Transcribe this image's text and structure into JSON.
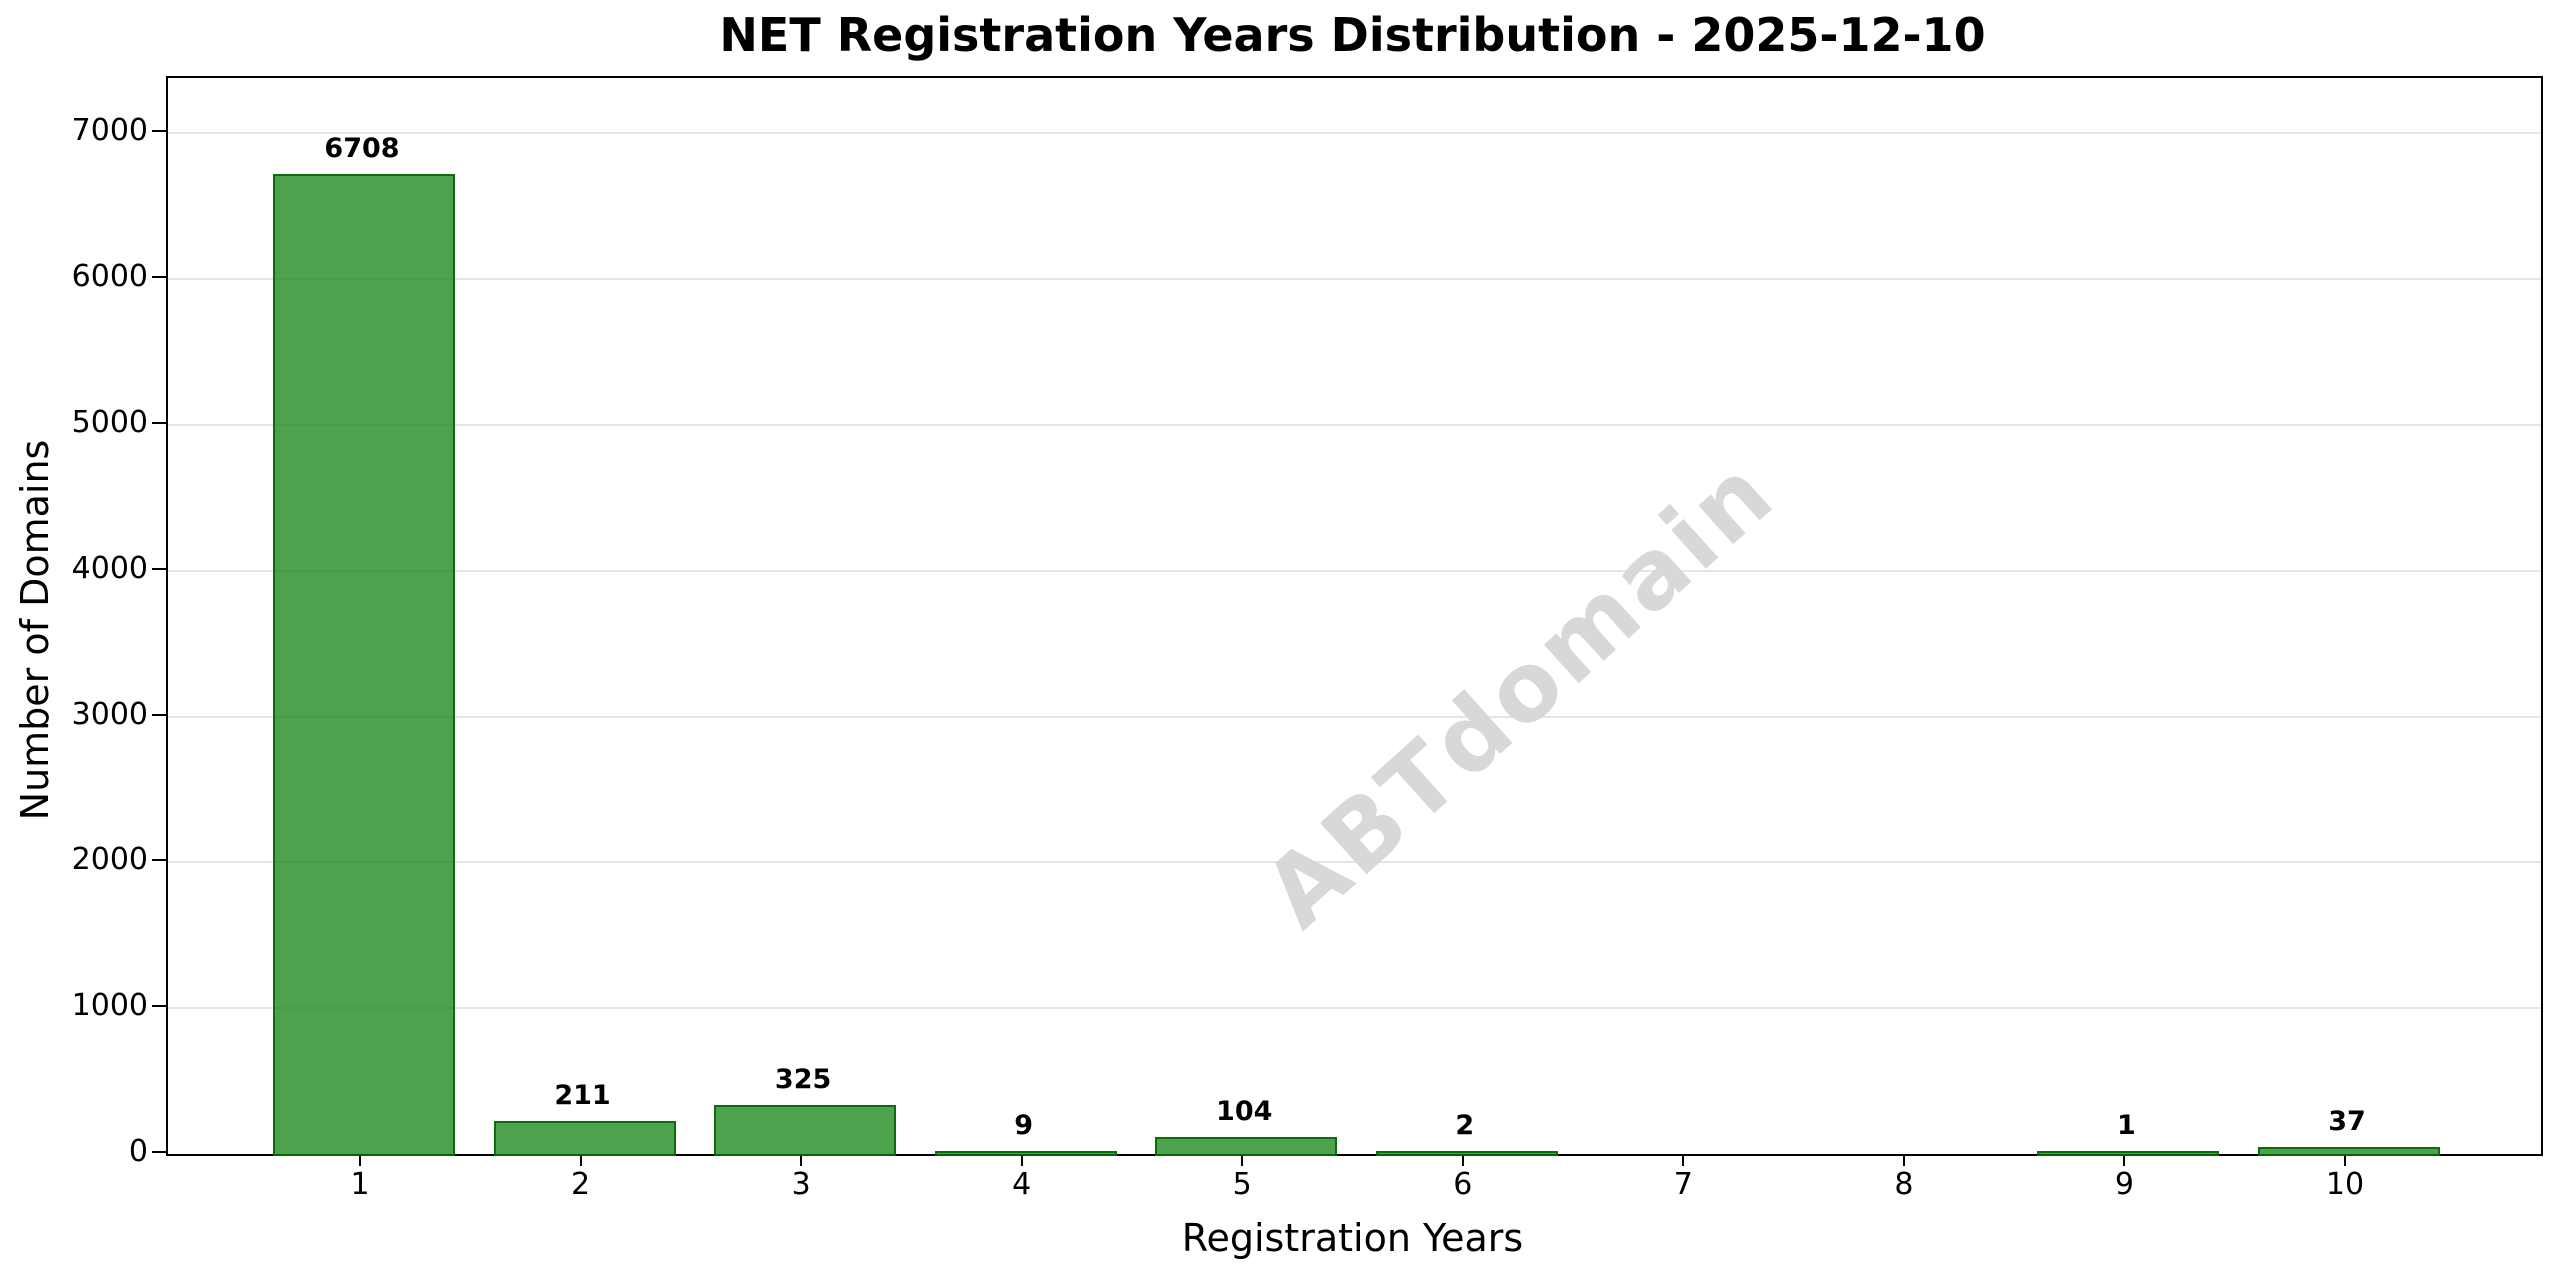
{
  "chart_data": {
    "type": "bar",
    "title": "NET Registration Years Distribution - 2025-12-10",
    "xlabel": "Registration Years",
    "ylabel": "Number of Domains",
    "watermark": "ABTdomain",
    "categories": [
      "1",
      "2",
      "3",
      "4",
      "5",
      "6",
      "7",
      "8",
      "9",
      "10"
    ],
    "values": [
      6708,
      211,
      325,
      9,
      104,
      2,
      0,
      0,
      1,
      37
    ],
    "bar_labels": [
      "6708",
      "211",
      "325",
      "9",
      "104",
      "2",
      "",
      "",
      "1",
      "37"
    ],
    "yticks": [
      0,
      1000,
      2000,
      3000,
      4000,
      5000,
      6000,
      7000
    ],
    "ylim": [
      0,
      7379
    ],
    "grid": "horizontal-y",
    "legend_position": "none",
    "colors": {
      "bar_fill_base": "#228B22",
      "bar_fill_rgba": "rgba(34,139,34,0.8)",
      "bar_edge_base": "#006400",
      "bar_edge_rgba": "rgba(0,100,0,0.85)",
      "gridline": "#e4e4e4",
      "axis_and_text": "#000000",
      "watermark_text": "#d8d8d8",
      "background": "#ffffff"
    }
  }
}
